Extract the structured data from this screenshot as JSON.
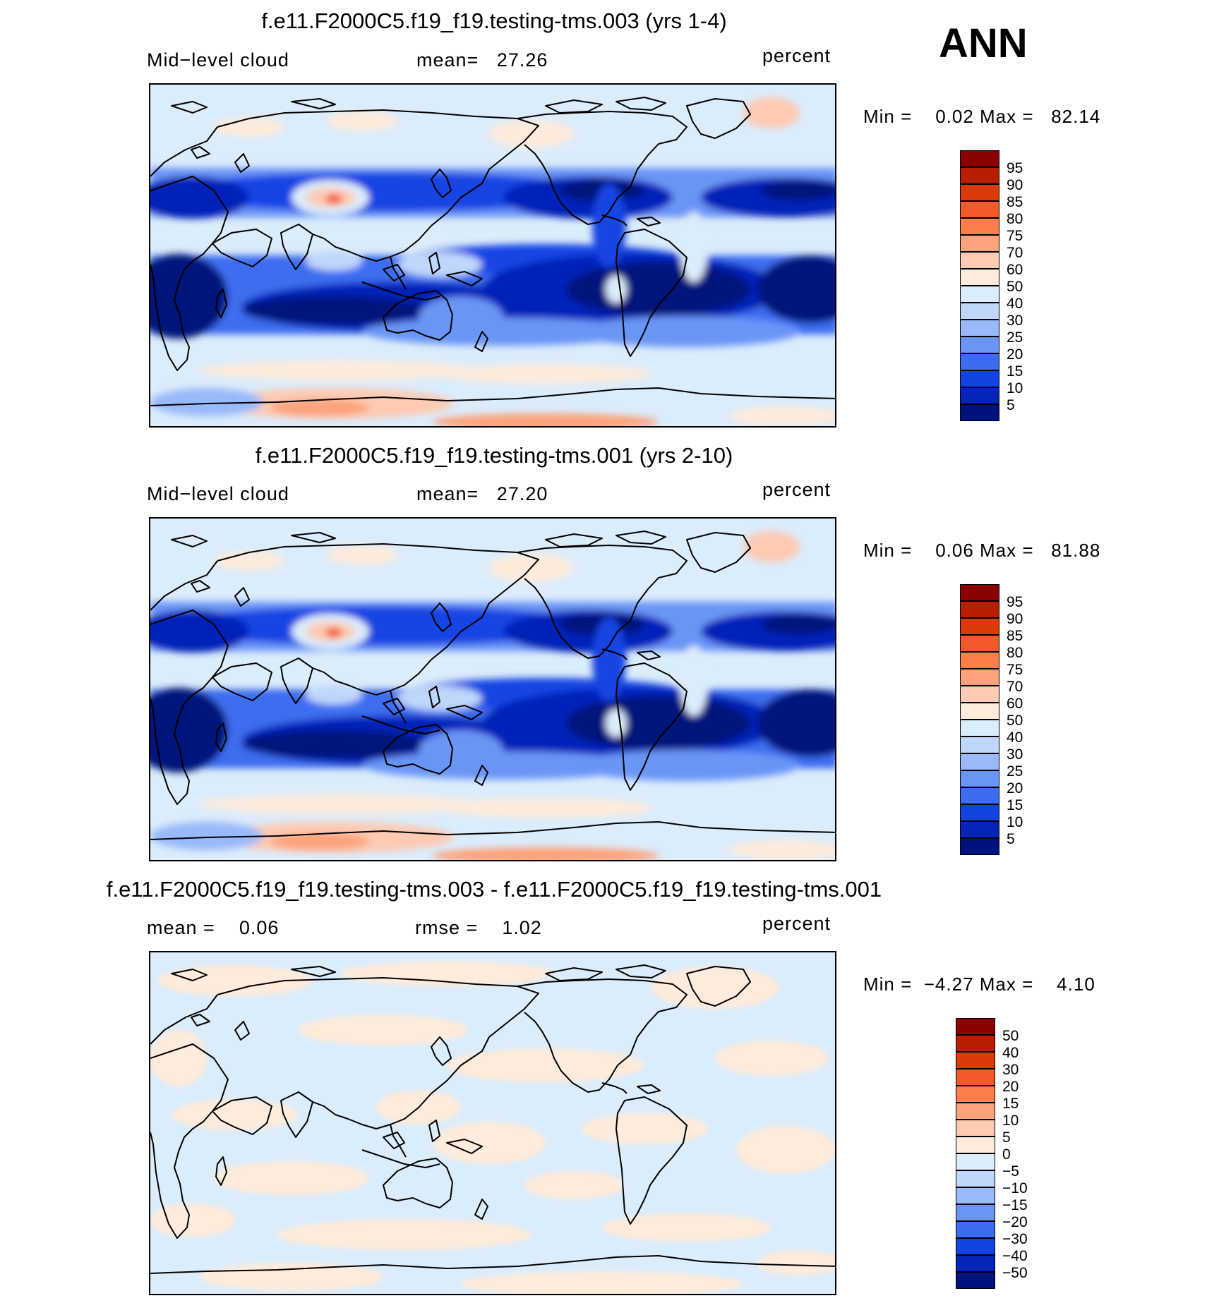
{
  "season": "ANN",
  "panels": [
    {
      "title": "f.e11.F2000C5.f19_f19.testing-tms.003 (yrs 1-4)",
      "left_label": "Mid−level cloud",
      "center_label": "mean=   27.26",
      "right_label": "percent",
      "min_max": "Min =    0.02 Max =   82.14",
      "kind": "abs"
    },
    {
      "title": "f.e11.F2000C5.f19_f19.testing-tms.001 (yrs 2-10)",
      "left_label": "Mid−level cloud",
      "center_label": "mean=   27.20",
      "right_label": "percent",
      "min_max": "Min =    0.06 Max =   81.88",
      "kind": "abs"
    },
    {
      "title": "f.e11.F2000C5.f19_f19.testing-tms.003 - f.e11.F2000C5.f19_f19.testing-tms.001",
      "left_label": "mean =    0.06",
      "right_label_mid": "rmse =    1.02",
      "right_label": "percent",
      "min_max": "Min =  −4.27 Max =    4.10",
      "kind": "diff"
    }
  ],
  "colorbar_abs": {
    "labels": [
      "95",
      "90",
      "85",
      "80",
      "75",
      "70",
      "60",
      "50",
      "40",
      "30",
      "25",
      "20",
      "15",
      "10",
      "5"
    ],
    "colors": [
      "#8b0000",
      "#b81e00",
      "#dd3a0b",
      "#f2592b",
      "#fb7e4c",
      "#fca37c",
      "#fdcab2",
      "#fdebdb",
      "#dbecfb",
      "#bfd7fb",
      "#98bafa",
      "#6a95f6",
      "#3c6df0",
      "#1244e3",
      "#0524b8",
      "#00127d"
    ]
  },
  "colorbar_diff": {
    "labels": [
      "50",
      "40",
      "30",
      "20",
      "15",
      "10",
      "5",
      "0",
      "−5",
      "−10",
      "−15",
      "−20",
      "−30",
      "−40",
      "−50"
    ],
    "colors": [
      "#8b0000",
      "#b81e00",
      "#dd3a0b",
      "#f2592b",
      "#fb7e4c",
      "#fca37c",
      "#fdcab2",
      "#fdebdb",
      "#dbecfb",
      "#bfd7fb",
      "#98bafa",
      "#6a95f6",
      "#3c6df0",
      "#1244e3",
      "#0524b8",
      "#00127d"
    ]
  }
}
